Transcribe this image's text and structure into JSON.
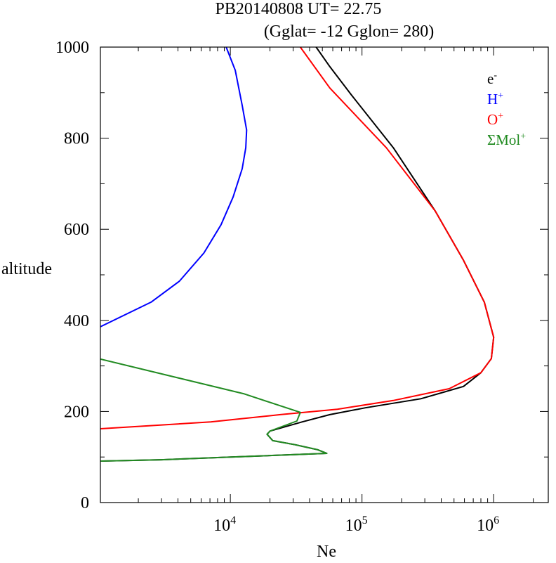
{
  "chart_data": {
    "type": "line",
    "title": "PB20140808   UT=  22.75",
    "subtitle": "(Gglat= -12   Gglon=  280)",
    "xlabel": "Ne",
    "ylabel": "altitude",
    "xscale": "log",
    "xlim": [
      1030,
      2600000
    ],
    "ylim": [
      0,
      1000
    ],
    "x_ticks": [
      {
        "value": 10000,
        "base": "10",
        "exp": "4"
      },
      {
        "value": 100000,
        "base": "10",
        "exp": "5"
      },
      {
        "value": 1000000,
        "base": "10",
        "exp": "6"
      }
    ],
    "y_ticks": [
      {
        "value": 0,
        "label": "0"
      },
      {
        "value": 200,
        "label": "200"
      },
      {
        "value": 400,
        "label": "400"
      },
      {
        "value": 600,
        "label": "600"
      },
      {
        "value": 800,
        "label": "800"
      },
      {
        "value": 1000,
        "label": "1000"
      }
    ],
    "legend_position": "top-right",
    "series": [
      {
        "name": "e-",
        "label_base": "e",
        "label_sup": "-",
        "color": "#000000",
        "points": [
          [
            44800,
            1000
          ],
          [
            57000,
            957
          ],
          [
            83000,
            895
          ],
          [
            173000,
            779
          ],
          [
            360000,
            640
          ],
          [
            590000,
            532
          ],
          [
            850000,
            440
          ],
          [
            1000000,
            363
          ],
          [
            960000,
            316
          ],
          [
            800000,
            285
          ],
          [
            590000,
            255
          ],
          [
            280000,
            228
          ],
          [
            106000,
            208
          ],
          [
            57000,
            193
          ],
          [
            35000,
            177
          ],
          [
            20000,
            157
          ],
          [
            19000,
            150
          ],
          [
            21000,
            136
          ],
          [
            31000,
            127
          ],
          [
            46000,
            116
          ],
          [
            54000,
            108
          ],
          [
            3000,
            94
          ],
          [
            1030,
            91
          ]
        ]
      },
      {
        "name": "H+",
        "label_base": "H",
        "label_sup": "+",
        "color": "#0000ff",
        "points": [
          [
            9300,
            1000
          ],
          [
            10900,
            949
          ],
          [
            12300,
            872
          ],
          [
            13300,
            818
          ],
          [
            13100,
            779
          ],
          [
            12300,
            733
          ],
          [
            10500,
            671
          ],
          [
            8500,
            610
          ],
          [
            6300,
            548
          ],
          [
            4100,
            486
          ],
          [
            2500,
            440
          ],
          [
            1030,
            386
          ]
        ]
      },
      {
        "name": "O+",
        "label_base": "O",
        "label_sup": "+",
        "color": "#ff0000",
        "points": [
          [
            34000,
            1000
          ],
          [
            57000,
            910
          ],
          [
            153000,
            779
          ],
          [
            360000,
            640
          ],
          [
            590000,
            532
          ],
          [
            850000,
            440
          ],
          [
            1000000,
            363
          ],
          [
            960000,
            316
          ],
          [
            800000,
            285
          ],
          [
            460000,
            250
          ],
          [
            173000,
            224
          ],
          [
            65000,
            205
          ],
          [
            24000,
            193
          ],
          [
            7100,
            177
          ],
          [
            1030,
            162
          ]
        ]
      },
      {
        "name": "ΣMol+",
        "label_base": "ΣMol",
        "label_sup": "+",
        "color": "#228b22",
        "points": [
          [
            1030,
            315
          ],
          [
            12600,
            239
          ],
          [
            34000,
            198
          ],
          [
            32000,
            179
          ],
          [
            20000,
            157
          ],
          [
            19000,
            150
          ],
          [
            21000,
            136
          ],
          [
            31000,
            127
          ],
          [
            46000,
            116
          ],
          [
            54000,
            108
          ],
          [
            3000,
            94
          ],
          [
            1030,
            91
          ]
        ]
      }
    ]
  }
}
